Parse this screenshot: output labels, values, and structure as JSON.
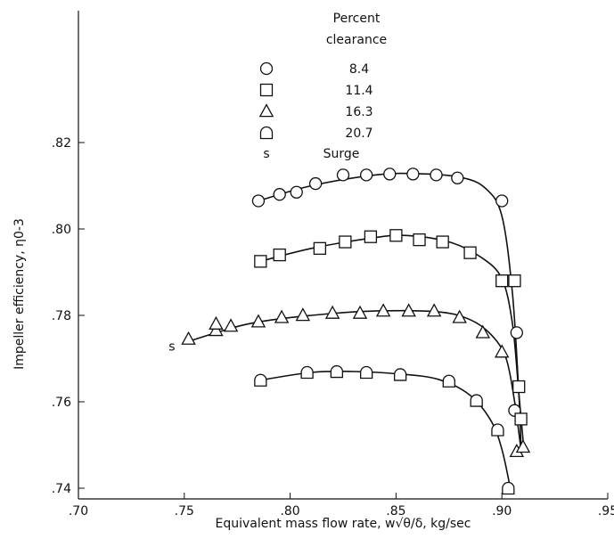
{
  "chart_data": {
    "type": "scatter",
    "xlabel": "Equivalent mass flow rate, w√θ/δ, kg/sec",
    "ylabel": "Impeller efficiency, η0-3",
    "xlim": [
      0.7,
      0.95
    ],
    "ylim": [
      0.74,
      0.82
    ],
    "x_ticks": [
      0.7,
      0.75,
      0.8,
      0.85,
      0.9,
      0.95
    ],
    "x_tick_labels": [
      ".70",
      ".75",
      ".80",
      ".85",
      ".90",
      ".95"
    ],
    "y_ticks": [
      0.74,
      0.76,
      0.78,
      0.8,
      0.82
    ],
    "y_tick_labels": [
      ".74",
      ".76",
      ".78",
      ".80",
      ".82"
    ],
    "grid": false,
    "legend": {
      "title_line1": "Percent",
      "title_line2": "clearance",
      "placement": "top-center",
      "surge_symbol": "s",
      "surge_label": "Surge"
    },
    "annotations": [
      {
        "text": "s",
        "x": 0.7485,
        "y": 0.7735
      }
    ],
    "series": [
      {
        "name": "8.4",
        "marker": "circle",
        "points": [
          [
            0.785,
            0.8065
          ],
          [
            0.795,
            0.808
          ],
          [
            0.803,
            0.8085
          ],
          [
            0.812,
            0.8105
          ],
          [
            0.825,
            0.8125
          ],
          [
            0.836,
            0.8125
          ],
          [
            0.847,
            0.8127
          ],
          [
            0.858,
            0.8127
          ],
          [
            0.869,
            0.8125
          ],
          [
            0.879,
            0.8118
          ],
          [
            0.9,
            0.8065
          ],
          [
            0.907,
            0.776
          ],
          [
            0.906,
            0.758
          ]
        ],
        "curve": [
          [
            0.785,
            0.8065
          ],
          [
            0.81,
            0.81
          ],
          [
            0.84,
            0.8125
          ],
          [
            0.86,
            0.8128
          ],
          [
            0.88,
            0.812
          ],
          [
            0.892,
            0.8095
          ],
          [
            0.9,
            0.803
          ],
          [
            0.905,
            0.785
          ],
          [
            0.908,
            0.762
          ],
          [
            0.909,
            0.75
          ]
        ]
      },
      {
        "name": "11.4",
        "marker": "square",
        "points": [
          [
            0.786,
            0.7925
          ],
          [
            0.795,
            0.794
          ],
          [
            0.814,
            0.7955
          ],
          [
            0.826,
            0.797
          ],
          [
            0.838,
            0.7982
          ],
          [
            0.85,
            0.7985
          ],
          [
            0.861,
            0.7975
          ],
          [
            0.872,
            0.797
          ],
          [
            0.885,
            0.7945
          ],
          [
            0.9,
            0.788
          ],
          [
            0.906,
            0.788
          ],
          [
            0.908,
            0.7635
          ],
          [
            0.909,
            0.756
          ]
        ],
        "curve": [
          [
            0.786,
            0.7925
          ],
          [
            0.81,
            0.7955
          ],
          [
            0.84,
            0.798
          ],
          [
            0.855,
            0.7985
          ],
          [
            0.875,
            0.797
          ],
          [
            0.89,
            0.7935
          ],
          [
            0.9,
            0.7885
          ],
          [
            0.905,
            0.778
          ],
          [
            0.908,
            0.762
          ],
          [
            0.91,
            0.751
          ]
        ]
      },
      {
        "name": "16.3",
        "marker": "triangle",
        "points": [
          [
            0.752,
            0.7745
          ],
          [
            0.765,
            0.7765
          ],
          [
            0.765,
            0.778
          ],
          [
            0.772,
            0.7775
          ],
          [
            0.785,
            0.7785
          ],
          [
            0.796,
            0.7795
          ],
          [
            0.806,
            0.78
          ],
          [
            0.82,
            0.7805
          ],
          [
            0.833,
            0.7805
          ],
          [
            0.844,
            0.781
          ],
          [
            0.856,
            0.781
          ],
          [
            0.868,
            0.781
          ],
          [
            0.88,
            0.7795
          ],
          [
            0.891,
            0.776
          ],
          [
            0.9,
            0.7715
          ],
          [
            0.907,
            0.7485
          ],
          [
            0.91,
            0.7495
          ]
        ],
        "curve": [
          [
            0.752,
            0.774
          ],
          [
            0.78,
            0.778
          ],
          [
            0.81,
            0.78
          ],
          [
            0.84,
            0.781
          ],
          [
            0.87,
            0.7808
          ],
          [
            0.885,
            0.779
          ],
          [
            0.895,
            0.7755
          ],
          [
            0.902,
            0.77
          ],
          [
            0.906,
            0.76
          ],
          [
            0.909,
            0.749
          ]
        ]
      },
      {
        "name": "20.7",
        "marker": "d-shape",
        "points": [
          [
            0.786,
            0.765
          ],
          [
            0.808,
            0.7668
          ],
          [
            0.822,
            0.767
          ],
          [
            0.836,
            0.7668
          ],
          [
            0.852,
            0.7663
          ],
          [
            0.875,
            0.7648
          ],
          [
            0.888,
            0.7603
          ],
          [
            0.898,
            0.7535
          ],
          [
            0.903,
            0.74
          ]
        ],
        "curve": [
          [
            0.786,
            0.765
          ],
          [
            0.81,
            0.7668
          ],
          [
            0.83,
            0.767
          ],
          [
            0.85,
            0.7665
          ],
          [
            0.87,
            0.7652
          ],
          [
            0.885,
            0.7615
          ],
          [
            0.895,
            0.7555
          ],
          [
            0.9,
            0.749
          ],
          [
            0.904,
            0.74
          ]
        ]
      }
    ]
  }
}
